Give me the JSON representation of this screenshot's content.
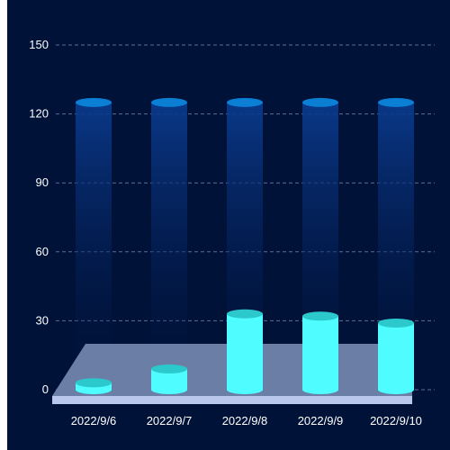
{
  "chart_data": {
    "type": "bar",
    "title": "",
    "xlabel": "",
    "ylabel": "",
    "categories": [
      "2022/9/6",
      "2022/9/7",
      "2022/9/8",
      "2022/9/9",
      "2022/9/10"
    ],
    "values": [
      3,
      9,
      33,
      32,
      29
    ],
    "background_value": 125,
    "ylim": [
      0,
      150
    ],
    "yticks": [
      0,
      30,
      60,
      90,
      120,
      150
    ],
    "grid": true,
    "style": "3d-cylinder"
  },
  "colors": {
    "background": "#001238",
    "bar": "#4ffcff",
    "bar_cap": "#2cc9cc",
    "ghost_cap": "#0b7fd4",
    "ghost_body": "#0a3a8c",
    "platform": "#6b7fa6",
    "platform_front": "#b9c7ec",
    "grid": "#5a6e9a",
    "text": "#ffffff"
  }
}
